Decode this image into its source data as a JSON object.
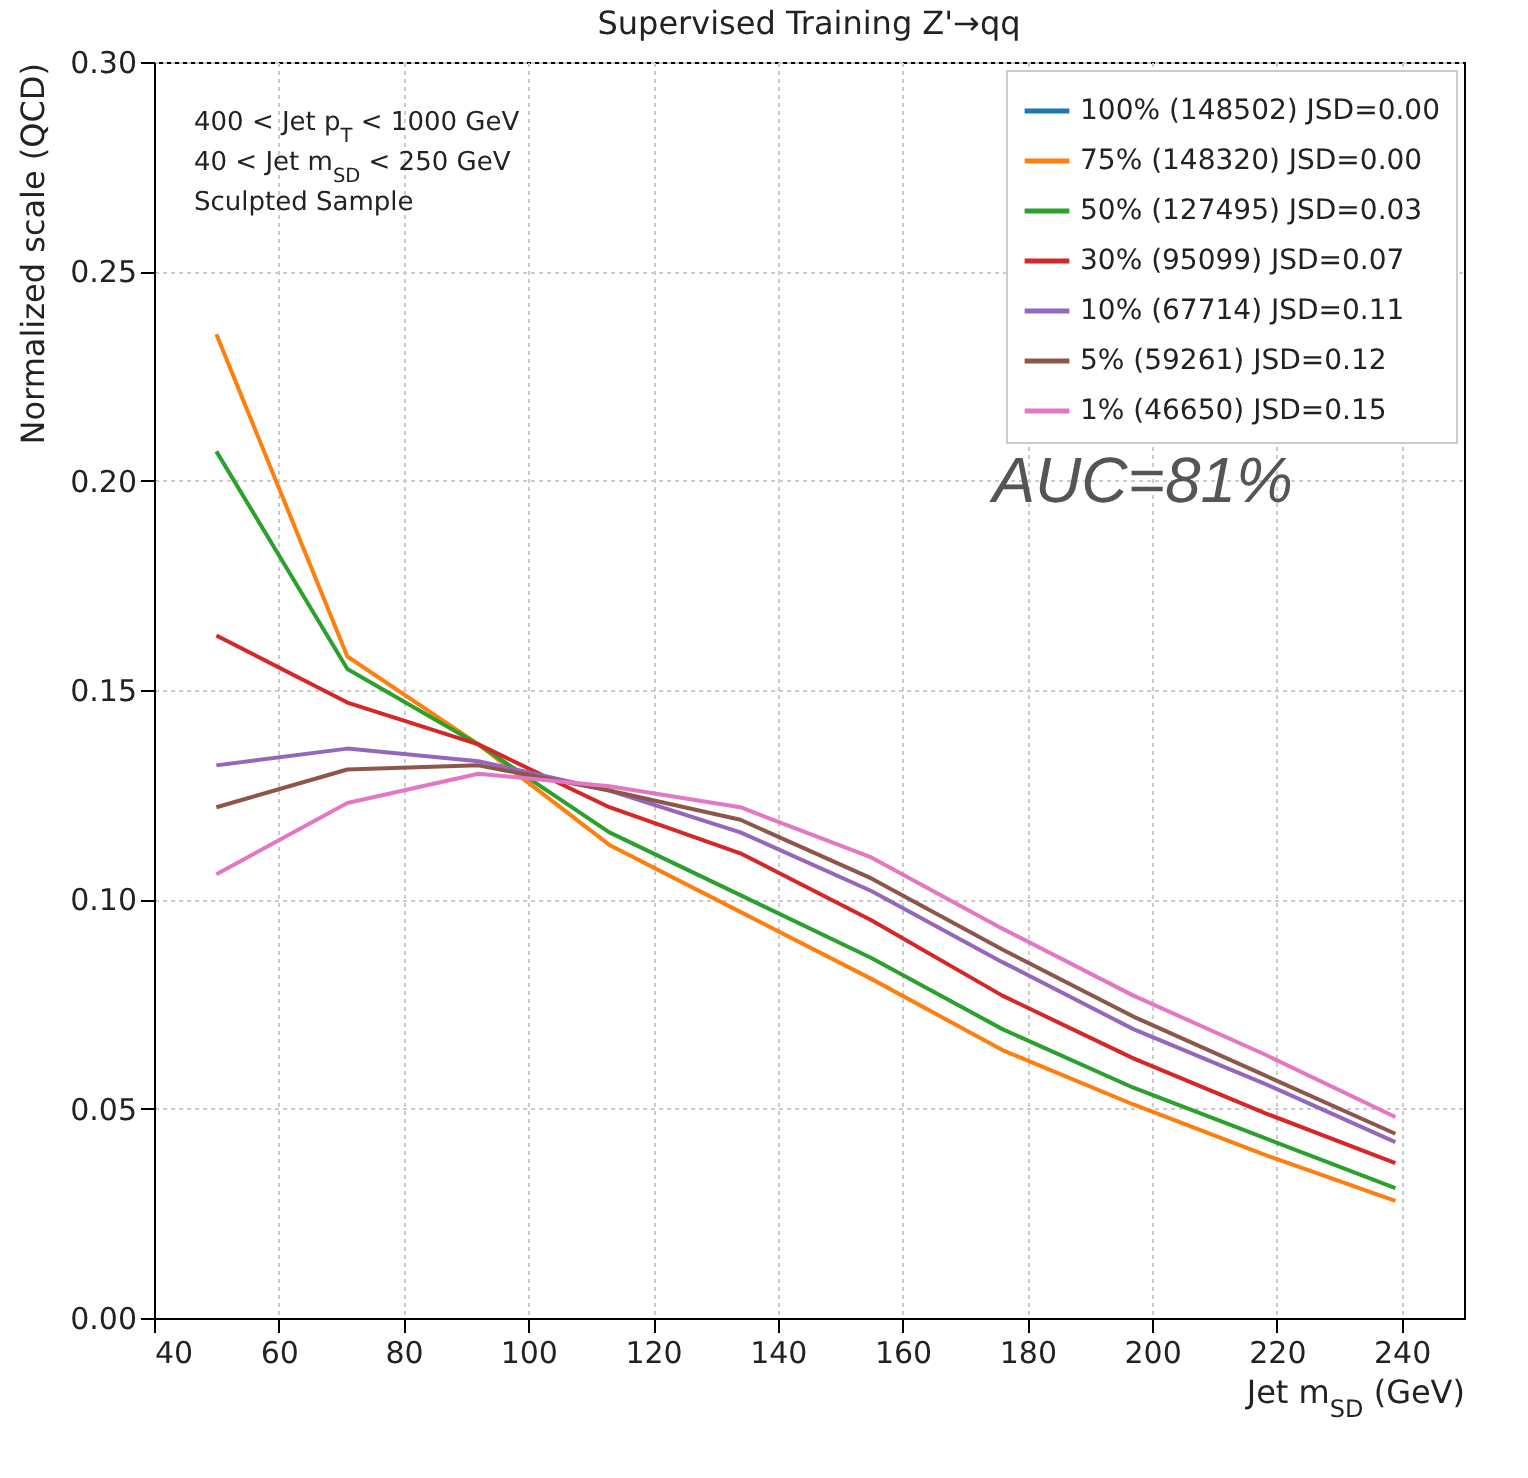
{
  "chart_data": {
    "type": "line",
    "title": "Supervised Training  Z'→qq",
    "xlabel": "Jet m$_{SD}$ (GeV)",
    "ylabel": "Normalized scale (QCD)",
    "x": [
      50,
      71,
      92,
      113,
      134,
      155,
      176,
      197,
      218,
      239
    ],
    "series": [
      {
        "name": "100% (148502) JSD=0.00",
        "color": "#1f77b4",
        "values": [
          null,
          null,
          null,
          null,
          null,
          null,
          null,
          null,
          null,
          null
        ]
      },
      {
        "name": "75% (148320) JSD=0.00",
        "color": "#ff7f0e",
        "values": [
          0.235,
          0.158,
          0.137,
          0.113,
          0.097,
          0.081,
          0.064,
          0.051,
          0.039,
          0.028
        ]
      },
      {
        "name": "50% (127495) JSD=0.03",
        "color": "#2ca02c",
        "values": [
          0.207,
          0.155,
          0.137,
          0.116,
          0.101,
          0.086,
          0.069,
          0.055,
          0.043,
          0.031
        ]
      },
      {
        "name": "30% (95099) JSD=0.07",
        "color": "#d62728",
        "values": [
          0.163,
          0.147,
          0.137,
          0.122,
          0.111,
          0.095,
          0.077,
          0.062,
          0.049,
          0.037
        ]
      },
      {
        "name": "10% (67714) JSD=0.11",
        "color": "#9467bd",
        "values": [
          0.132,
          0.136,
          0.133,
          0.126,
          0.116,
          0.102,
          0.085,
          0.069,
          0.056,
          0.042
        ]
      },
      {
        "name": "5% (59261) JSD=0.12",
        "color": "#8c564b",
        "values": [
          0.122,
          0.131,
          0.132,
          0.126,
          0.119,
          0.105,
          0.088,
          0.072,
          0.058,
          0.044
        ]
      },
      {
        "name": "1% (46650) JSD=0.15",
        "color": "#e377c2",
        "values": [
          0.106,
          0.123,
          0.13,
          0.127,
          0.122,
          0.11,
          0.093,
          0.077,
          0.063,
          0.048
        ]
      }
    ],
    "xlim": [
      40,
      250
    ],
    "xticks": [
      40,
      60,
      80,
      100,
      120,
      140,
      160,
      180,
      200,
      220,
      240
    ],
    "ylim": [
      0,
      0.3
    ],
    "yticks": [
      {
        "value": 0,
        "label": "0.00"
      },
      0.05,
      {
        "value": 0.1,
        "label": "0.10"
      },
      0.15,
      {
        "value": 0.2,
        "label": "0.20"
      },
      0.25,
      {
        "value": 0.3,
        "label": "0.30"
      }
    ],
    "grid": true,
    "legend": "top right",
    "annotations": [
      "400 < Jet p$_{T}$ < 1000 GeV",
      "40 < Jet m$_{SD}$ < 250 GeV",
      "Sculpted Sample",
      "AUC=81%"
    ]
  }
}
